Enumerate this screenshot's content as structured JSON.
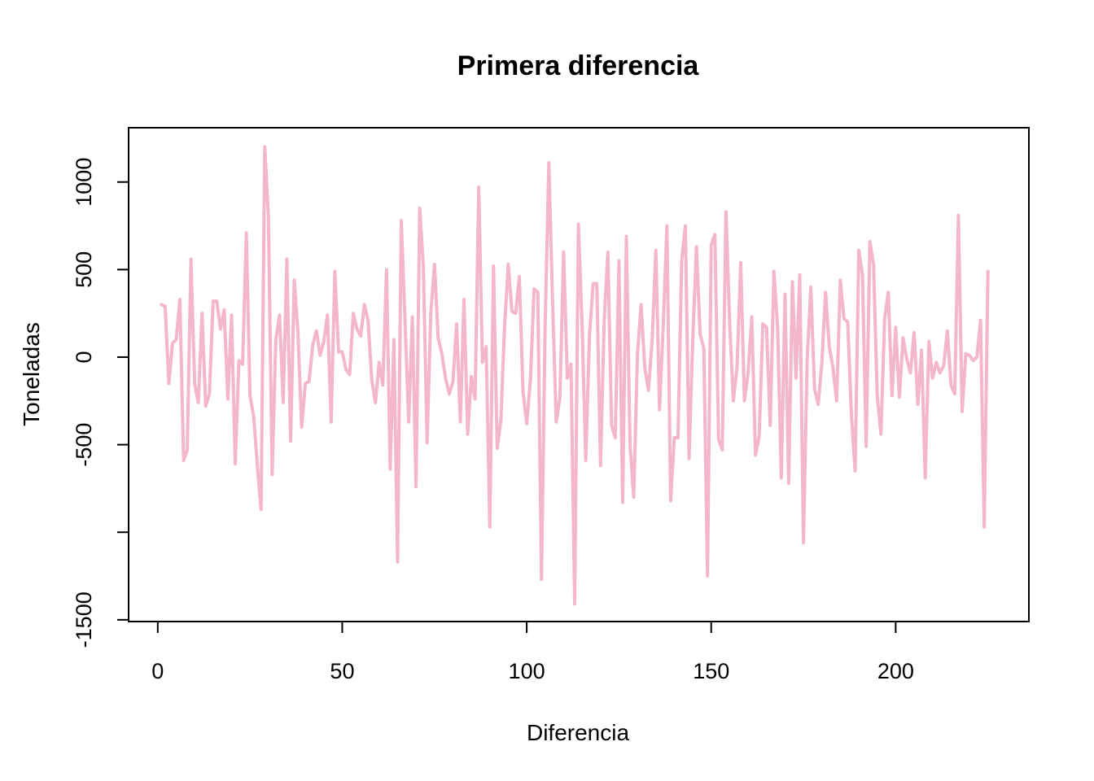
{
  "chart_data": {
    "type": "line",
    "title": "Primera diferencia",
    "xlabel": "Diferencia",
    "ylabel": "Toneladas",
    "xlim": [
      -7.9,
      236.1
    ],
    "ylim": [
      -1510,
      1310
    ],
    "x_ticks": [
      0,
      50,
      100,
      150,
      200
    ],
    "x_tick_labels": [
      "0",
      "50",
      "100",
      "150",
      "200"
    ],
    "y_ticks": [
      -1500,
      -1000,
      -500,
      0,
      500,
      1000
    ],
    "y_tick_labels": [
      "-1500",
      "",
      "-500",
      "0",
      "500",
      "1000"
    ],
    "grid": false,
    "line_color": "#f4b6c9",
    "series": [
      {
        "x_start": 1,
        "values": [
          300,
          290,
          -150,
          80,
          100,
          330,
          -590,
          -530,
          560,
          -150,
          -260,
          250,
          -280,
          -210,
          320,
          320,
          160,
          270,
          -240,
          240,
          -610,
          -20,
          -40,
          710,
          -220,
          -340,
          -620,
          -870,
          1200,
          800,
          -670,
          100,
          240,
          -260,
          560,
          -480,
          440,
          140,
          -400,
          -150,
          -140,
          70,
          150,
          10,
          90,
          240,
          -370,
          490,
          30,
          30,
          -70,
          -100,
          250,
          160,
          120,
          300,
          210,
          -130,
          -260,
          -30,
          -160,
          500,
          -640,
          100,
          -1170,
          780,
          220,
          -370,
          230,
          -740,
          850,
          510,
          -490,
          250,
          530,
          110,
          20,
          -120,
          -210,
          -140,
          190,
          -370,
          330,
          -440,
          -110,
          -240,
          970,
          -30,
          60,
          -970,
          520,
          -520,
          -360,
          180,
          530,
          260,
          250,
          460,
          -200,
          -380,
          -130,
          390,
          370,
          -1270,
          190,
          1110,
          320,
          -370,
          -230,
          600,
          -120,
          -40,
          -1410,
          760,
          190,
          -590,
          120,
          420,
          420,
          -620,
          210,
          600,
          -390,
          -460,
          550,
          -830,
          690,
          -500,
          -800,
          10,
          300,
          -60,
          -190,
          100,
          610,
          -300,
          180,
          750,
          -820,
          -460,
          -460,
          550,
          750,
          -580,
          100,
          630,
          130,
          50,
          -1250,
          640,
          700,
          -470,
          -530,
          830,
          200,
          -250,
          -60,
          540,
          -250,
          -90,
          230,
          -560,
          -450,
          190,
          170,
          -390,
          490,
          170,
          -690,
          360,
          -720,
          430,
          -120,
          470,
          -1060,
          -20,
          400,
          -180,
          -270,
          -30,
          370,
          60,
          -60,
          -250,
          440,
          220,
          200,
          -330,
          -650,
          610,
          470,
          -510,
          660,
          530,
          -220,
          -440,
          220,
          370,
          -220,
          170,
          -230,
          110,
          -10,
          -90,
          140,
          -270,
          40,
          -690,
          90,
          -120,
          -30,
          -90,
          -50,
          150,
          -160,
          -210,
          810,
          -310,
          20,
          10,
          -20,
          0,
          210,
          -970,
          490
        ]
      }
    ]
  }
}
